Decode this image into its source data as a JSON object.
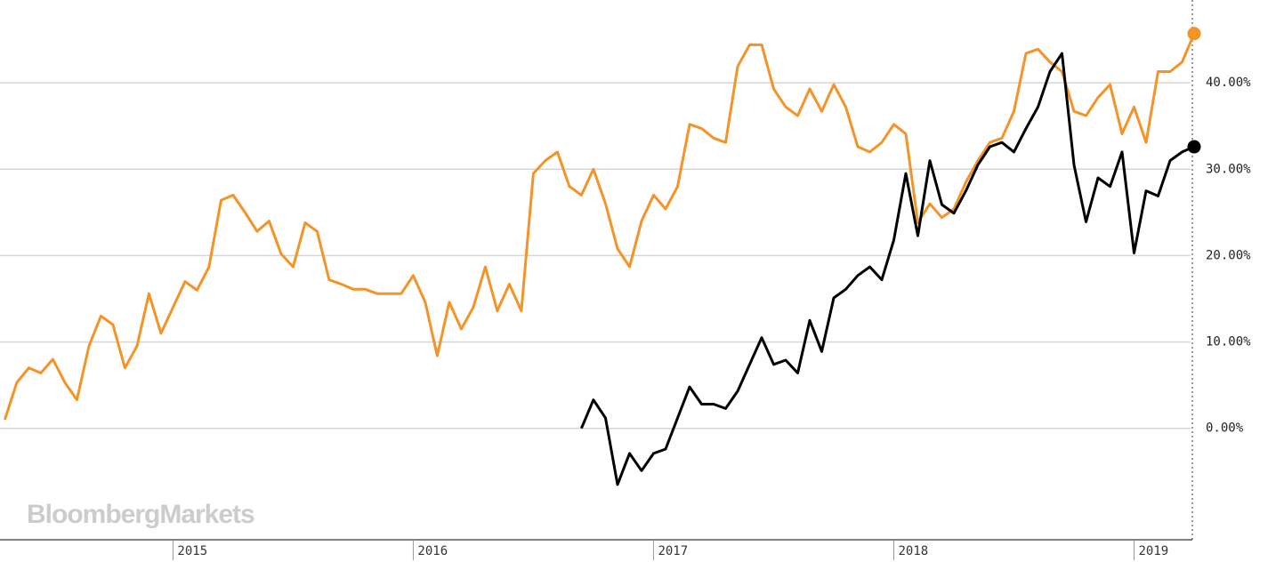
{
  "chart_data": {
    "type": "line",
    "watermark": "BloombergMarkets",
    "x": [
      2014.3,
      2014.35,
      2014.4,
      2014.45,
      2014.5,
      2014.55,
      2014.6,
      2014.65,
      2014.7,
      2014.75,
      2014.8,
      2014.85,
      2014.9,
      2014.95,
      2015.0,
      2015.05,
      2015.1,
      2015.15,
      2015.2,
      2015.25,
      2015.3,
      2015.35,
      2015.4,
      2015.45,
      2015.5,
      2015.55,
      2015.6,
      2015.65,
      2015.7,
      2015.75,
      2015.8,
      2015.85,
      2015.9,
      2015.95,
      2016.0,
      2016.05,
      2016.1,
      2016.15,
      2016.2,
      2016.25,
      2016.3,
      2016.35,
      2016.4,
      2016.45,
      2016.5,
      2016.55,
      2016.6,
      2016.65,
      2016.7,
      2016.75,
      2016.8,
      2016.85,
      2016.9,
      2016.95,
      2017.0,
      2017.05,
      2017.1,
      2017.15,
      2017.2,
      2017.25,
      2017.3,
      2017.35,
      2017.4,
      2017.45,
      2017.5,
      2017.55,
      2017.6,
      2017.65,
      2017.7,
      2017.75,
      2017.8,
      2017.85,
      2017.9,
      2017.95,
      2018.0,
      2018.05,
      2018.1,
      2018.15,
      2018.2,
      2018.25,
      2018.3,
      2018.35,
      2018.4,
      2018.45,
      2018.5,
      2018.55,
      2018.6,
      2018.65,
      2018.7,
      2018.75,
      2018.8,
      2018.85,
      2018.9,
      2018.95,
      2019.0,
      2019.05,
      2019.1,
      2019.15,
      2019.2,
      2019.25
    ],
    "series": [
      {
        "color": "#f39328",
        "values": [
          1,
          5.3,
          7,
          6.4,
          8,
          5.3,
          3.3,
          9.5,
          13,
          12,
          7,
          9.5,
          15.6,
          11,
          14,
          17,
          16,
          18.7,
          26.4,
          27,
          25,
          22.8,
          24,
          20.2,
          18.7,
          23.8,
          22.8,
          17.2,
          16.7,
          16.1,
          16.1,
          15.6,
          15.6,
          15.6,
          17.7,
          14.6,
          8.4,
          14.6,
          11.5,
          14,
          18.7,
          13.6,
          16.7,
          13.6,
          29.5,
          31,
          32,
          28,
          27,
          30,
          26,
          20.8,
          18.7,
          24,
          27,
          25.4,
          28,
          35.2,
          34.7,
          33.6,
          33.1,
          41.9,
          44.4,
          44.4,
          39.3,
          37.2,
          36.2,
          39.3,
          36.7,
          39.8,
          37.2,
          32.6,
          32,
          33.1,
          35.2,
          34.1,
          23.8,
          26,
          24.4,
          25.4,
          28.5,
          31,
          33.1,
          33.6,
          36.7,
          43.4,
          43.9,
          42.4,
          41.3,
          36.7,
          36.2,
          38.3,
          39.8,
          34.1,
          37.2,
          33.1,
          41.3,
          41.3,
          42.4,
          45.7
        ]
      },
      {
        "color": "#000000",
        "values": [
          null,
          null,
          null,
          null,
          null,
          null,
          null,
          null,
          null,
          null,
          null,
          null,
          null,
          null,
          null,
          null,
          null,
          null,
          null,
          null,
          null,
          null,
          null,
          null,
          null,
          null,
          null,
          null,
          null,
          null,
          null,
          null,
          null,
          null,
          null,
          null,
          null,
          null,
          null,
          null,
          null,
          null,
          null,
          null,
          null,
          null,
          null,
          null,
          0,
          3.3,
          1.2,
          -6.5,
          -2.9,
          -4.9,
          -2.9,
          -2.4,
          1.2,
          4.8,
          2.8,
          2.8,
          2.3,
          4.3,
          7.4,
          10.5,
          7.4,
          7.9,
          6.4,
          12.5,
          8.9,
          15.1,
          16.1,
          17.7,
          18.7,
          17.2,
          21.8,
          29.5,
          22.3,
          31,
          25.9,
          24.9,
          27.5,
          30.5,
          32.6,
          33.1,
          32,
          34.7,
          37.2,
          41.3,
          43.4,
          30.5,
          23.9,
          29,
          28,
          32,
          20.3,
          27.5,
          26.9,
          31,
          32,
          32.6
        ]
      }
    ],
    "xlim": [
      2014.28,
      2019.25
    ],
    "xticks": [
      2015,
      2016,
      2017,
      2018,
      2019
    ],
    "ylim": [
      -13,
      50
    ],
    "yticks": [
      {
        "value": 0,
        "label": "0.00%"
      },
      {
        "value": 10,
        "label": "10.00%"
      },
      {
        "value": 20,
        "label": "20.00%"
      },
      {
        "value": 30,
        "label": "30.00%"
      },
      {
        "value": 40,
        "label": "40.00%"
      }
    ],
    "grid": true
  }
}
